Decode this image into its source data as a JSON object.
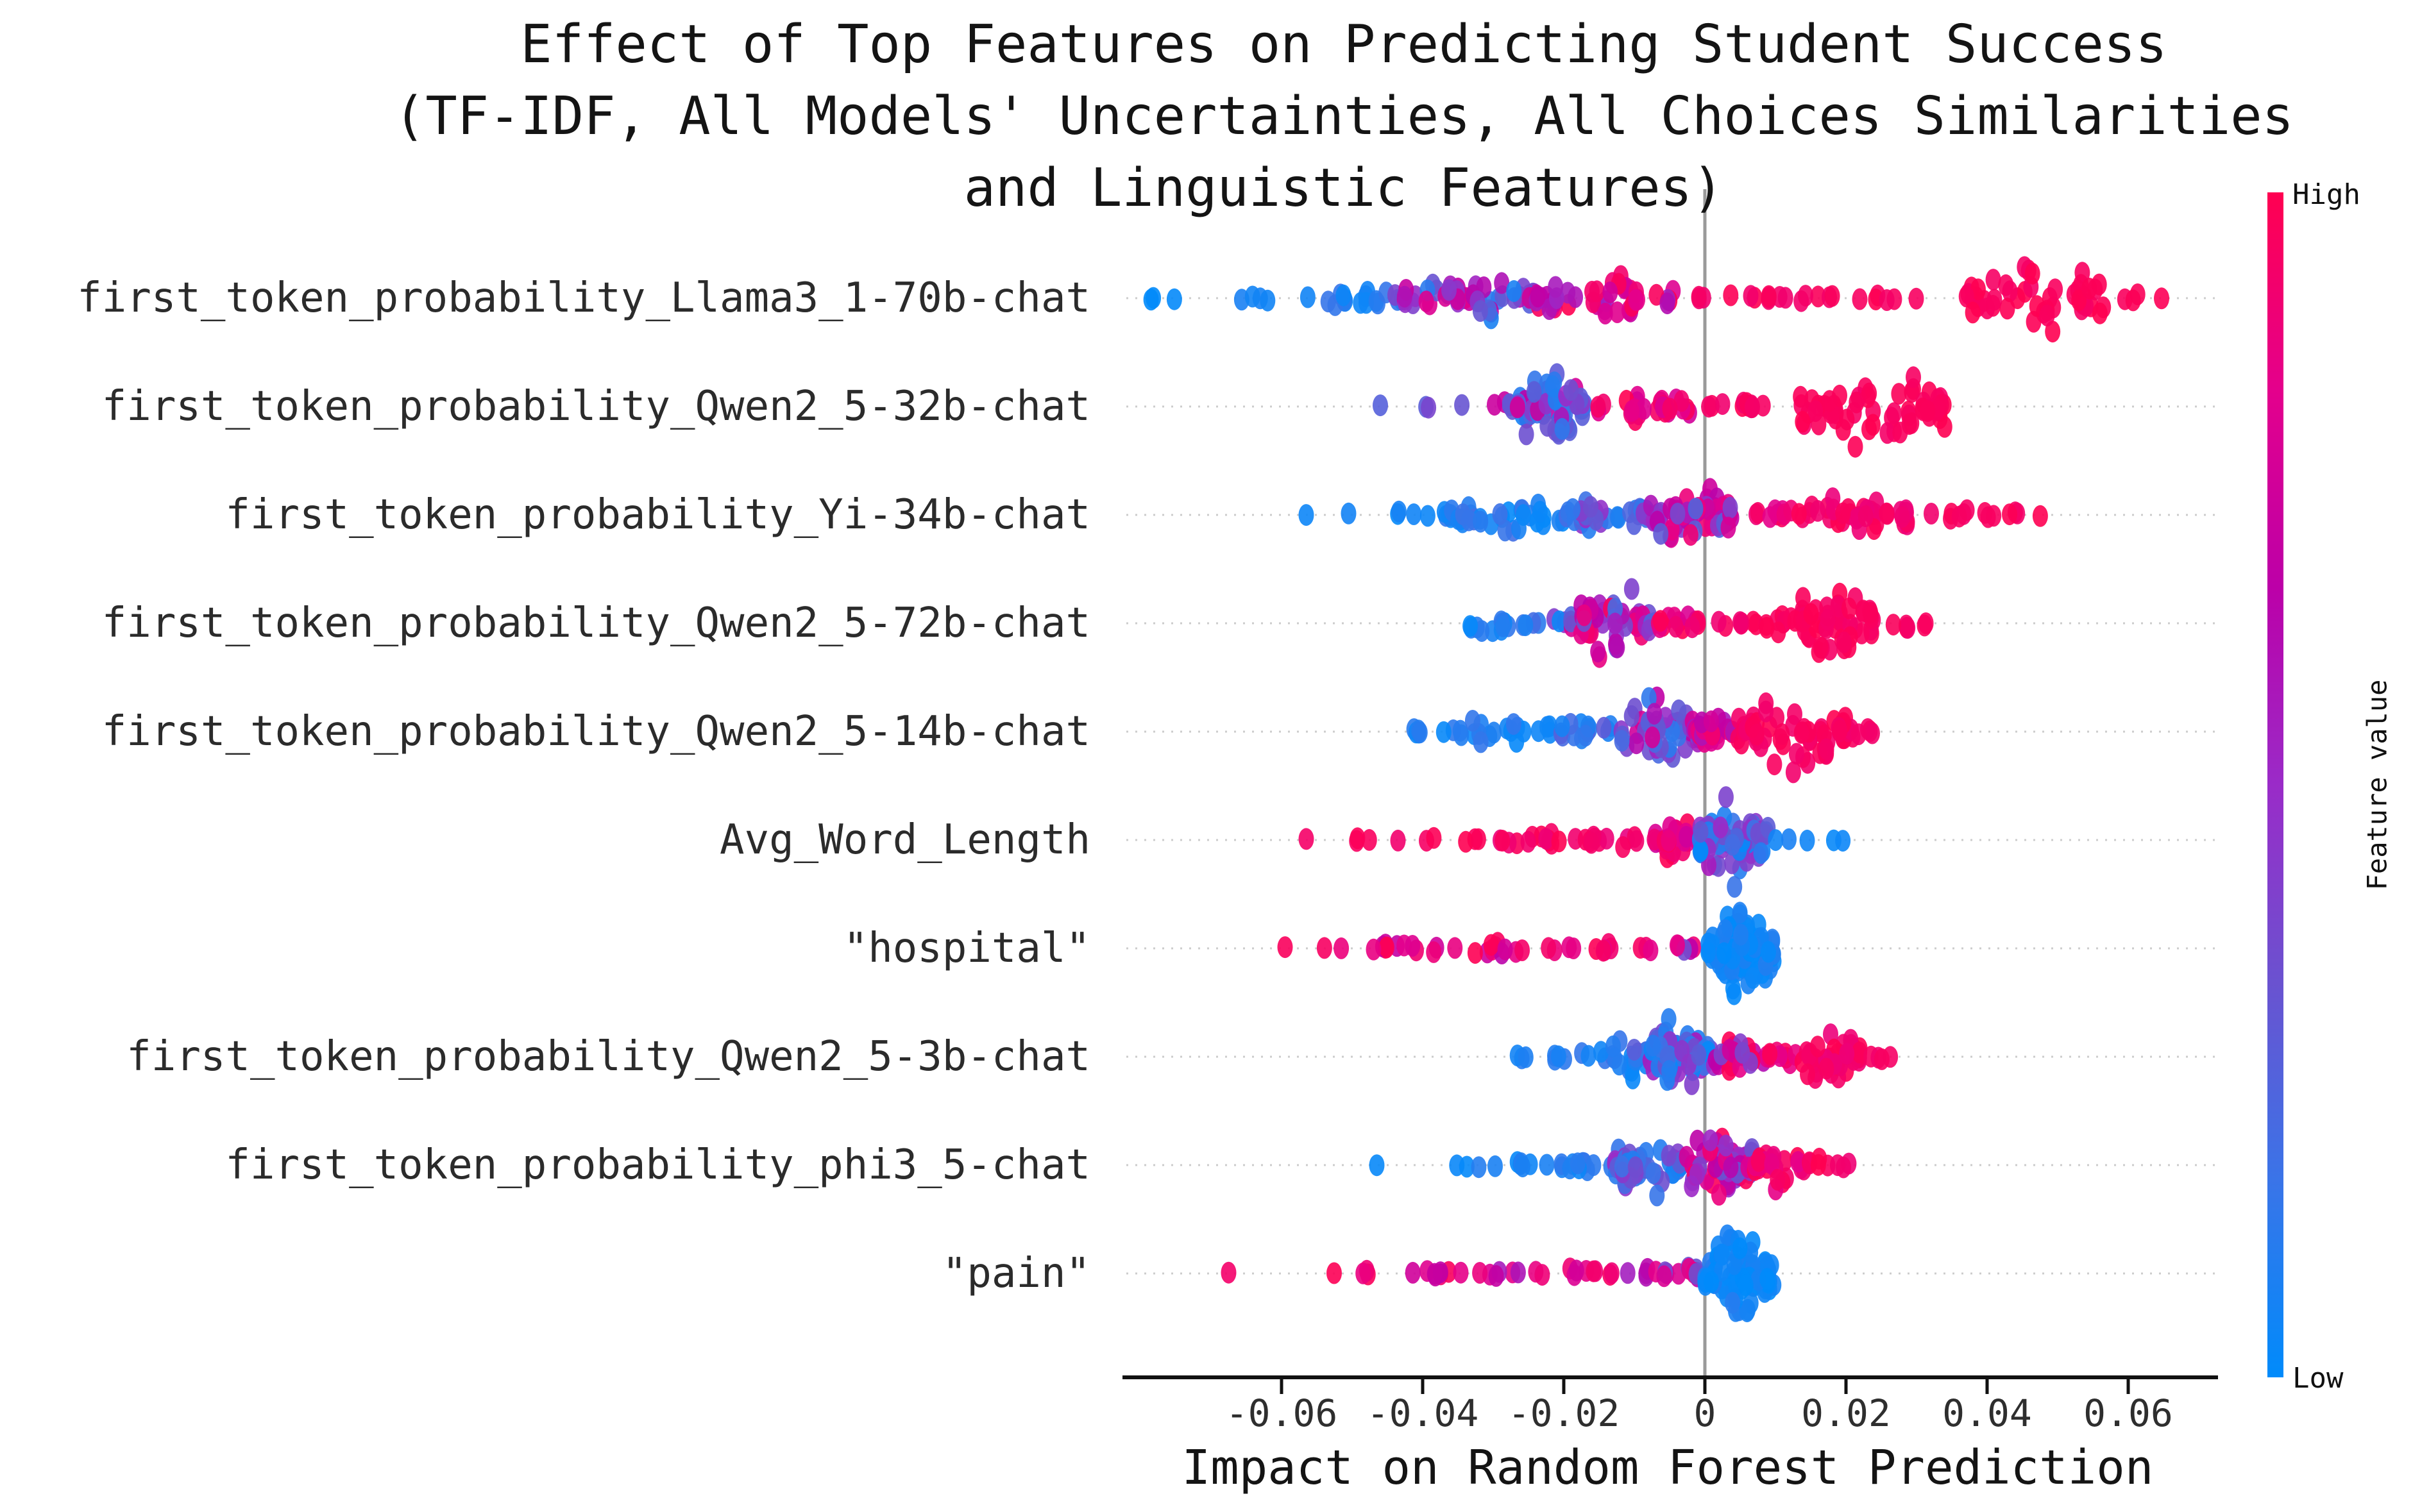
{
  "title": {
    "line1": "Effect of Top Features on Predicting Student Success",
    "line2": "(TF-IDF, All Models' Uncertainties, All Choices Similarities",
    "line3": "and Linguistic Features)"
  },
  "xaxis": {
    "label": "Impact on Random Forest Prediction"
  },
  "colorbar": {
    "high_label": "High",
    "low_label": "Low",
    "title": "Feature value",
    "gradient_top_to_bottom": [
      "#ff0051",
      "#e4008c",
      "#bc00a8",
      "#9a2bc8",
      "#6a52d0",
      "#3a74e8",
      "#008bfb"
    ]
  },
  "chart_data": {
    "type": "scatter",
    "subtype": "shap-beeswarm",
    "title": "Effect of Top Features on Predicting Student Success (TF-IDF, All Models' Uncertainties, All Choices Similarities and Linguistic Features)",
    "xlabel": "Impact on Random Forest Prediction",
    "ylabel": "",
    "x_range": [
      -0.082,
      0.073
    ],
    "grid": "dotted horizontal line per feature row",
    "zero_line": {
      "x": 0,
      "color": "#9a9a9a"
    },
    "x_ticks": [
      {
        "value": -0.06,
        "label": "-0.06"
      },
      {
        "value": -0.04,
        "label": "-0.04"
      },
      {
        "value": -0.02,
        "label": "-0.02"
      },
      {
        "value": 0,
        "label": "0"
      },
      {
        "value": 0.02,
        "label": "0.02"
      },
      {
        "value": 0.04,
        "label": "0.04"
      },
      {
        "value": 0.06,
        "label": "0.06"
      }
    ],
    "point_color_low": "#008bfb",
    "point_color_high": "#ff0051",
    "clusters_legend": "each cluster = [x_min, x_max, n_points, vertical_spread_0to1, feature_value_0to1 (0=Low/blue, 1=High/red), value_jitter]",
    "features": [
      {
        "label": "first_token_probability_Llama3_1-70b-chat",
        "clusters": [
          [
            -0.079,
            -0.072,
            3,
            0.08,
            0.04,
            0.04
          ],
          [
            -0.068,
            -0.056,
            5,
            0.1,
            0.06,
            0.05
          ],
          [
            -0.055,
            -0.042,
            16,
            0.3,
            0.12,
            0.12
          ],
          [
            -0.044,
            -0.024,
            48,
            0.6,
            0.45,
            0.35
          ],
          [
            -0.024,
            -0.003,
            42,
            0.55,
            0.8,
            0.25
          ],
          [
            -0.001,
            0.019,
            16,
            0.12,
            0.95,
            0.05
          ],
          [
            0.021,
            0.033,
            6,
            0.08,
            0.95,
            0.05
          ],
          [
            0.037,
            0.057,
            48,
            0.85,
            0.97,
            0.04
          ],
          [
            0.058,
            0.066,
            4,
            0.1,
            0.97,
            0.03
          ]
        ]
      },
      {
        "label": "first_token_probability_Qwen2_5-32b-chat",
        "clusters": [
          [
            -0.047,
            -0.045,
            1,
            0.05,
            0.35,
            0.1
          ],
          [
            -0.04,
            -0.034,
            3,
            0.1,
            0.45,
            0.15
          ],
          [
            -0.032,
            -0.027,
            5,
            0.18,
            0.5,
            0.25
          ],
          [
            -0.027,
            -0.017,
            58,
            0.9,
            0.4,
            0.35
          ],
          [
            -0.016,
            -0.002,
            26,
            0.4,
            0.88,
            0.15
          ],
          [
            0.0,
            0.01,
            12,
            0.12,
            0.94,
            0.06
          ],
          [
            0.013,
            0.034,
            62,
            0.88,
            0.96,
            0.04
          ]
        ]
      },
      {
        "label": "first_token_probability_Yi-34b-chat",
        "clusters": [
          [
            -0.058,
            -0.055,
            1,
            0.05,
            0.08,
            0.05
          ],
          [
            -0.052,
            -0.049,
            1,
            0.05,
            0.08,
            0.05
          ],
          [
            -0.044,
            -0.035,
            9,
            0.25,
            0.1,
            0.1
          ],
          [
            -0.036,
            -0.019,
            32,
            0.42,
            0.15,
            0.15
          ],
          [
            -0.019,
            -0.008,
            28,
            0.5,
            0.3,
            0.25
          ],
          [
            -0.008,
            0.004,
            58,
            0.85,
            0.6,
            0.3
          ],
          [
            0.005,
            0.012,
            8,
            0.2,
            0.85,
            0.12
          ],
          [
            0.012,
            0.029,
            36,
            0.55,
            0.93,
            0.07
          ],
          [
            0.03,
            0.041,
            9,
            0.25,
            0.95,
            0.05
          ],
          [
            0.042,
            0.048,
            4,
            0.15,
            0.95,
            0.05
          ]
        ]
      },
      {
        "label": "first_token_probability_Qwen2_5-72b-chat",
        "clusters": [
          [
            -0.034,
            -0.026,
            13,
            0.3,
            0.12,
            0.1
          ],
          [
            -0.026,
            -0.019,
            7,
            0.2,
            0.35,
            0.3
          ],
          [
            -0.019,
            -0.007,
            58,
            0.92,
            0.6,
            0.35
          ],
          [
            -0.007,
            0.0,
            14,
            0.25,
            0.88,
            0.12
          ],
          [
            0.001,
            0.008,
            7,
            0.12,
            0.94,
            0.06
          ],
          [
            0.008,
            0.012,
            7,
            0.25,
            0.95,
            0.05
          ],
          [
            0.012,
            0.024,
            52,
            0.88,
            0.96,
            0.04
          ],
          [
            0.025,
            0.032,
            6,
            0.15,
            0.95,
            0.05
          ]
        ]
      },
      {
        "label": "first_token_probability_Qwen2_5-14b-chat",
        "clusters": [
          [
            -0.042,
            -0.021,
            26,
            0.3,
            0.12,
            0.1
          ],
          [
            -0.021,
            -0.012,
            14,
            0.32,
            0.22,
            0.15
          ],
          [
            -0.012,
            -0.001,
            48,
            0.78,
            0.45,
            0.3
          ],
          [
            -0.001,
            0.004,
            22,
            0.5,
            0.78,
            0.2
          ],
          [
            0.004,
            0.021,
            62,
            0.88,
            0.95,
            0.05
          ],
          [
            0.021,
            0.024,
            4,
            0.18,
            0.95,
            0.05
          ]
        ]
      },
      {
        "label": "Avg_Word_Length",
        "clusters": [
          [
            -0.058,
            -0.055,
            1,
            0.05,
            0.95,
            0.05
          ],
          [
            -0.053,
            -0.047,
            3,
            0.1,
            0.95,
            0.05
          ],
          [
            -0.045,
            -0.042,
            1,
            0.05,
            0.95,
            0.05
          ],
          [
            -0.041,
            -0.037,
            2,
            0.08,
            0.95,
            0.05
          ],
          [
            -0.036,
            -0.03,
            3,
            0.1,
            0.95,
            0.05
          ],
          [
            -0.029,
            -0.017,
            13,
            0.16,
            0.93,
            0.07
          ],
          [
            -0.017,
            -0.008,
            11,
            0.18,
            0.92,
            0.08
          ],
          [
            -0.008,
            -0.001,
            26,
            0.5,
            0.85,
            0.15
          ],
          [
            -0.001,
            0.009,
            72,
            0.92,
            0.3,
            0.3
          ],
          [
            0.01,
            0.012,
            2,
            0.08,
            0.08,
            0.05
          ],
          [
            0.013,
            0.016,
            1,
            0.05,
            0.08,
            0.05
          ],
          [
            0.018,
            0.022,
            2,
            0.08,
            0.08,
            0.05
          ]
        ]
      },
      {
        "label": "\"hospital\"",
        "clusters": [
          [
            -0.061,
            -0.058,
            1,
            0.05,
            0.9,
            0.08
          ],
          [
            -0.054,
            -0.05,
            2,
            0.08,
            0.9,
            0.08
          ],
          [
            -0.048,
            -0.037,
            11,
            0.15,
            0.82,
            0.18
          ],
          [
            -0.036,
            -0.025,
            11,
            0.15,
            0.82,
            0.18
          ],
          [
            -0.024,
            -0.017,
            4,
            0.1,
            0.88,
            0.1
          ],
          [
            -0.016,
            -0.008,
            7,
            0.12,
            0.85,
            0.15
          ],
          [
            -0.008,
            -0.001,
            6,
            0.15,
            0.65,
            0.25
          ],
          [
            0.0,
            0.01,
            85,
            1.0,
            0.06,
            0.09
          ]
        ]
      },
      {
        "label": "first_token_probability_Qwen2_5-3b-chat",
        "clusters": [
          [
            -0.027,
            -0.023,
            3,
            0.1,
            0.1,
            0.08
          ],
          [
            -0.022,
            -0.015,
            6,
            0.18,
            0.12,
            0.1
          ],
          [
            -0.015,
            -0.008,
            22,
            0.5,
            0.22,
            0.2
          ],
          [
            -0.008,
            0.001,
            72,
            0.95,
            0.3,
            0.3
          ],
          [
            0.001,
            0.009,
            26,
            0.55,
            0.72,
            0.28
          ],
          [
            0.009,
            0.013,
            9,
            0.3,
            0.88,
            0.1
          ],
          [
            0.013,
            0.022,
            42,
            0.72,
            0.93,
            0.07
          ],
          [
            0.023,
            0.027,
            4,
            0.12,
            0.95,
            0.05
          ]
        ]
      },
      {
        "label": "first_token_probability_phi3_5-chat",
        "clusters": [
          [
            -0.048,
            -0.045,
            1,
            0.05,
            0.08,
            0.05
          ],
          [
            -0.036,
            -0.029,
            4,
            0.1,
            0.1,
            0.08
          ],
          [
            -0.028,
            -0.021,
            6,
            0.14,
            0.1,
            0.08
          ],
          [
            -0.021,
            -0.013,
            11,
            0.22,
            0.14,
            0.1
          ],
          [
            -0.013,
            -0.003,
            48,
            0.72,
            0.3,
            0.25
          ],
          [
            -0.003,
            0.007,
            58,
            0.88,
            0.68,
            0.3
          ],
          [
            0.007,
            0.015,
            26,
            0.5,
            0.9,
            0.1
          ],
          [
            0.015,
            0.021,
            6,
            0.18,
            0.94,
            0.06
          ]
        ]
      },
      {
        "label": "\"pain\"",
        "clusters": [
          [
            -0.069,
            -0.066,
            1,
            0.05,
            0.95,
            0.05
          ],
          [
            -0.053,
            -0.046,
            4,
            0.1,
            0.9,
            0.1
          ],
          [
            -0.044,
            -0.036,
            7,
            0.15,
            0.82,
            0.18
          ],
          [
            -0.035,
            -0.026,
            7,
            0.14,
            0.78,
            0.22
          ],
          [
            -0.025,
            -0.013,
            10,
            0.15,
            0.86,
            0.14
          ],
          [
            -0.011,
            -0.006,
            5,
            0.14,
            0.6,
            0.25
          ],
          [
            -0.006,
            -0.001,
            11,
            0.3,
            0.6,
            0.25
          ],
          [
            0.0,
            0.01,
            80,
            1.0,
            0.07,
            0.1
          ]
        ]
      }
    ]
  }
}
